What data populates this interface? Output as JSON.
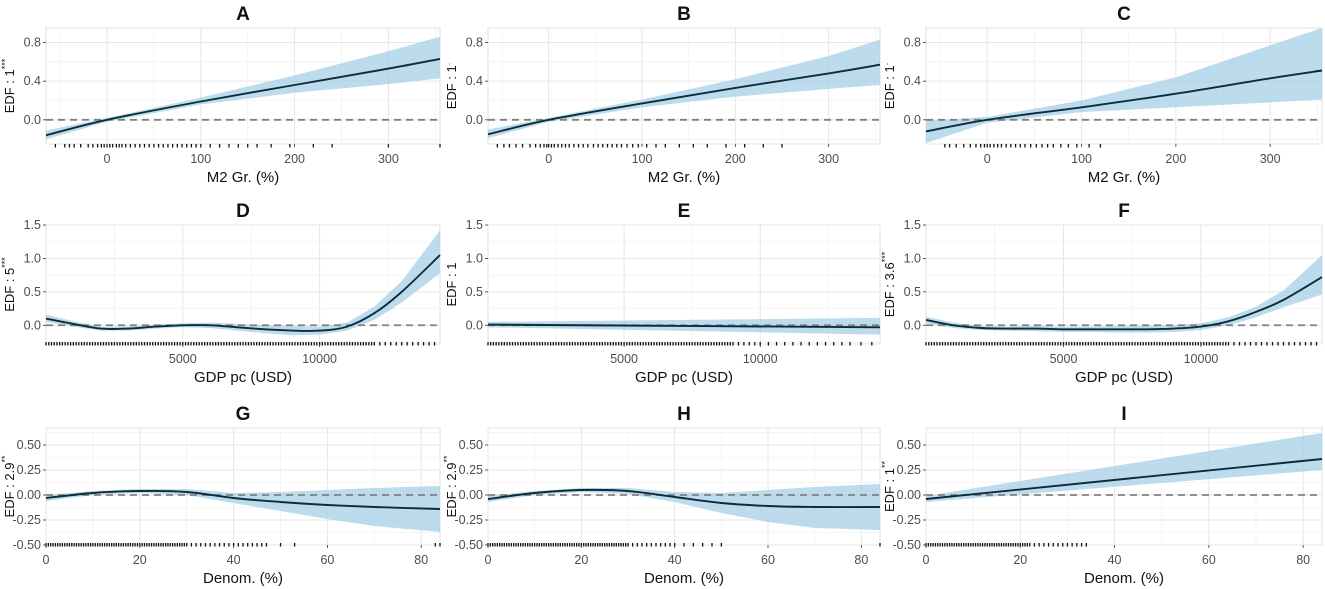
{
  "chart_data": [
    {
      "panel": "A",
      "type": "line",
      "title": "A",
      "xlabel": "M2 Gr. (%)",
      "ylabel": "EDF : 1",
      "stars": "***",
      "xlim": [
        -65,
        355
      ],
      "ylim": [
        -0.25,
        0.95
      ],
      "xticks": [
        0,
        100,
        200,
        300
      ],
      "yticks": [
        0.0,
        0.4,
        0.8
      ],
      "ytick_labels": [
        "0.0",
        "0.4",
        "0.8"
      ],
      "x": [
        -65,
        0,
        100,
        200,
        300,
        355
      ],
      "y": [
        -0.16,
        0.0,
        0.19,
        0.36,
        0.53,
        0.63
      ],
      "lower": [
        -0.2,
        -0.02,
        0.16,
        0.28,
        0.37,
        0.43
      ],
      "upper": [
        -0.11,
        0.02,
        0.23,
        0.46,
        0.71,
        0.86
      ],
      "rug": [
        -55,
        -45,
        -40,
        -35,
        -28,
        -20,
        -15,
        -10,
        -6,
        -3,
        0,
        3,
        6,
        10,
        13,
        16,
        20,
        25,
        30,
        35,
        40,
        45,
        50,
        55,
        60,
        65,
        70,
        75,
        80,
        85,
        90,
        95,
        100,
        110,
        120,
        130,
        140,
        150,
        160,
        175,
        195,
        220,
        240,
        300,
        355
      ]
    },
    {
      "panel": "B",
      "type": "line",
      "title": "B",
      "xlabel": "M2 Gr. (%)",
      "ylabel": "EDF : 1",
      "stars": ".",
      "xlim": [
        -65,
        355
      ],
      "ylim": [
        -0.25,
        0.95
      ],
      "xticks": [
        0,
        100,
        200,
        300
      ],
      "yticks": [
        0.0,
        0.4,
        0.8
      ],
      "ytick_labels": [
        "0.0",
        "0.4",
        "0.8"
      ],
      "x": [
        -65,
        0,
        100,
        200,
        300,
        355
      ],
      "y": [
        -0.15,
        0.0,
        0.17,
        0.33,
        0.48,
        0.57
      ],
      "lower": [
        -0.19,
        -0.02,
        0.13,
        0.24,
        0.32,
        0.36
      ],
      "upper": [
        -0.1,
        0.02,
        0.21,
        0.42,
        0.66,
        0.83
      ],
      "rug": [
        -55,
        -48,
        -42,
        -35,
        -28,
        -20,
        -14,
        -9,
        -5,
        -2,
        0,
        3,
        6,
        10,
        14,
        18,
        22,
        27,
        32,
        37,
        42,
        48,
        53,
        58,
        63,
        68,
        73,
        78,
        84,
        90,
        96,
        105,
        115,
        125,
        140,
        155,
        170,
        190,
        210,
        230,
        250
      ]
    },
    {
      "panel": "C",
      "type": "line",
      "title": "C",
      "xlabel": "M2 Gr. (%)",
      "ylabel": "EDF : 1",
      "stars": ".",
      "xlim": [
        -65,
        355
      ],
      "ylim": [
        -0.25,
        0.95
      ],
      "xticks": [
        0,
        100,
        200,
        300
      ],
      "yticks": [
        0.0,
        0.4,
        0.8
      ],
      "ytick_labels": [
        "0.0",
        "0.4",
        "0.8"
      ],
      "x": [
        -65,
        0,
        100,
        200,
        300,
        355
      ],
      "y": [
        -0.12,
        0.0,
        0.13,
        0.27,
        0.43,
        0.51
      ],
      "lower": [
        -0.24,
        -0.03,
        0.08,
        0.13,
        0.18,
        0.21
      ],
      "upper": [
        -0.01,
        0.03,
        0.2,
        0.44,
        0.77,
        0.95
      ],
      "rug": [
        -45,
        -40,
        -33,
        -25,
        -18,
        -12,
        -7,
        -3,
        0,
        3,
        7,
        11,
        15,
        20,
        25,
        30,
        35,
        40,
        46,
        52,
        58,
        64,
        70,
        78,
        86,
        95,
        108,
        120
      ]
    },
    {
      "panel": "D",
      "type": "line",
      "title": "D",
      "xlabel": "GDP pc (USD)",
      "ylabel": "EDF : 5",
      "stars": "***",
      "xlim": [
        0,
        14400
      ],
      "ylim": [
        -0.28,
        1.5
      ],
      "xticks": [
        5000,
        10000
      ],
      "yticks": [
        0.0,
        0.5,
        1.0,
        1.5
      ],
      "ytick_labels": [
        "0.0",
        "0.5",
        "1.0",
        "1.5"
      ],
      "x": [
        0,
        1000,
        2000,
        3000,
        4000,
        5000,
        6000,
        7000,
        8000,
        9000,
        10000,
        11000,
        12000,
        13000,
        14400
      ],
      "y": [
        0.1,
        0.02,
        -0.05,
        -0.05,
        -0.02,
        0.0,
        0.0,
        -0.03,
        -0.06,
        -0.08,
        -0.08,
        -0.02,
        0.18,
        0.5,
        1.05
      ],
      "lower": [
        0.05,
        -0.02,
        -0.08,
        -0.08,
        -0.05,
        -0.03,
        -0.04,
        -0.08,
        -0.12,
        -0.15,
        -0.14,
        -0.08,
        0.08,
        0.34,
        0.78
      ],
      "upper": [
        0.16,
        0.06,
        -0.02,
        -0.02,
        0.01,
        0.03,
        0.04,
        0.02,
        0.0,
        -0.01,
        -0.02,
        0.04,
        0.28,
        0.66,
        1.42
      ],
      "rug": [
        0,
        100,
        200,
        300,
        400,
        500,
        600,
        700,
        800,
        900,
        1000,
        1100,
        1200,
        1300,
        1400,
        1500,
        1600,
        1700,
        1800,
        1900,
        2000,
        2100,
        2200,
        2300,
        2400,
        2500,
        2600,
        2700,
        2800,
        2900,
        3000,
        3100,
        3200,
        3300,
        3400,
        3500,
        3600,
        3700,
        3800,
        3900,
        4000,
        4100,
        4200,
        4300,
        4400,
        4500,
        4600,
        4700,
        4800,
        4900,
        5000,
        5100,
        5200,
        5300,
        5400,
        5500,
        5600,
        5700,
        5800,
        5900,
        6000,
        6100,
        6200,
        6300,
        6400,
        6500,
        6600,
        6700,
        6800,
        6900,
        7000,
        7100,
        7200,
        7300,
        7400,
        7500,
        7600,
        7700,
        7800,
        7900,
        8000,
        8100,
        8200,
        8300,
        8400,
        8500,
        8600,
        8700,
        8800,
        8900,
        9000,
        9100,
        9200,
        9300,
        9400,
        9500,
        9600,
        9700,
        9800,
        9900,
        10000,
        10100,
        10200,
        10300,
        10400,
        10500,
        10600,
        10700,
        10800,
        10900,
        11000,
        11100,
        11200,
        11300,
        11400,
        11500,
        11600,
        11700,
        11800,
        11900,
        12000,
        12200,
        12400,
        12600,
        12800,
        13000,
        13200,
        13400,
        13600,
        13800,
        14000,
        14200
      ]
    },
    {
      "panel": "E",
      "type": "line",
      "title": "E",
      "xlabel": "GDP pc (USD)",
      "ylabel": "EDF : 1",
      "stars": "",
      "xlim": [
        0,
        14400
      ],
      "ylim": [
        -0.28,
        1.5
      ],
      "xticks": [
        5000,
        10000
      ],
      "yticks": [
        0.0,
        0.5,
        1.0,
        1.5
      ],
      "ytick_labels": [
        "0.0",
        "0.5",
        "1.0",
        "1.5"
      ],
      "x": [
        0,
        14400
      ],
      "y": [
        0.01,
        -0.03
      ],
      "lower": [
        -0.03,
        -0.14
      ],
      "upper": [
        0.05,
        0.11
      ],
      "rug": [
        0,
        100,
        200,
        300,
        400,
        500,
        600,
        700,
        800,
        900,
        1000,
        1100,
        1200,
        1300,
        1400,
        1500,
        1600,
        1700,
        1800,
        1900,
        2000,
        2100,
        2200,
        2300,
        2400,
        2500,
        2600,
        2700,
        2800,
        2900,
        3000,
        3100,
        3200,
        3300,
        3400,
        3500,
        3600,
        3700,
        3800,
        3900,
        4000,
        4100,
        4200,
        4300,
        4400,
        4500,
        4600,
        4700,
        4800,
        4900,
        5000,
        5100,
        5200,
        5300,
        5400,
        5500,
        5600,
        5700,
        5800,
        5900,
        6000,
        6100,
        6200,
        6300,
        6400,
        6500,
        6600,
        6700,
        6800,
        6900,
        7000,
        7100,
        7200,
        7300,
        7400,
        7500,
        7600,
        7700,
        7800,
        7900,
        8000,
        8100,
        8200,
        8300,
        8400,
        8500,
        8600,
        8700,
        8800,
        8900,
        9000,
        9200,
        9400,
        9600,
        9800,
        10000,
        10300,
        10600,
        10900,
        11200,
        11500,
        11800,
        12100,
        12400,
        12700,
        13000,
        13300,
        13700,
        14100
      ]
    },
    {
      "panel": "F",
      "type": "line",
      "title": "F",
      "xlabel": "GDP pc (USD)",
      "ylabel": "EDF : 3.6",
      "stars": "***",
      "xlim": [
        0,
        14400
      ],
      "ylim": [
        -0.28,
        1.5
      ],
      "xticks": [
        5000,
        10000
      ],
      "yticks": [
        0.0,
        0.5,
        1.0,
        1.5
      ],
      "ytick_labels": [
        "0.0",
        "0.5",
        "1.0",
        "1.5"
      ],
      "x": [
        0,
        1000,
        2000,
        3000,
        4000,
        5000,
        6000,
        7000,
        8000,
        9000,
        10000,
        11000,
        12000,
        13000,
        14400
      ],
      "y": [
        0.08,
        0.0,
        -0.04,
        -0.05,
        -0.05,
        -0.06,
        -0.06,
        -0.06,
        -0.06,
        -0.05,
        -0.02,
        0.06,
        0.2,
        0.38,
        0.72
      ],
      "lower": [
        0.03,
        -0.04,
        -0.07,
        -0.08,
        -0.09,
        -0.1,
        -0.1,
        -0.11,
        -0.11,
        -0.1,
        -0.07,
        0.0,
        0.12,
        0.27,
        0.46
      ],
      "upper": [
        0.13,
        0.04,
        -0.01,
        -0.02,
        -0.01,
        -0.02,
        -0.02,
        -0.01,
        -0.01,
        0.0,
        0.03,
        0.12,
        0.28,
        0.52,
        1.05
      ],
      "rug": [
        0,
        100,
        200,
        300,
        400,
        500,
        600,
        700,
        800,
        900,
        1000,
        1100,
        1200,
        1300,
        1400,
        1500,
        1600,
        1700,
        1800,
        1900,
        2000,
        2100,
        2200,
        2300,
        2400,
        2500,
        2600,
        2700,
        2800,
        2900,
        3000,
        3100,
        3200,
        3300,
        3400,
        3500,
        3600,
        3700,
        3800,
        3900,
        4000,
        4100,
        4200,
        4300,
        4400,
        4500,
        4600,
        4700,
        4800,
        4900,
        5000,
        5100,
        5200,
        5300,
        5400,
        5500,
        5600,
        5700,
        5800,
        5900,
        6000,
        6100,
        6200,
        6300,
        6400,
        6500,
        6600,
        6700,
        6800,
        6900,
        7000,
        7100,
        7200,
        7300,
        7400,
        7500,
        7600,
        7700,
        7800,
        7900,
        8000,
        8100,
        8200,
        8300,
        8400,
        8500,
        8600,
        8700,
        8800,
        8900,
        9000,
        9100,
        9200,
        9300,
        9400,
        9500,
        9600,
        9700,
        9800,
        9900,
        10000,
        10100,
        10200,
        10300,
        10400,
        10500,
        10600,
        10700,
        10800,
        10900,
        11000,
        11200,
        11400,
        11600,
        11800,
        12000,
        12200,
        12400,
        12600,
        12800,
        13000,
        13200,
        13400,
        13600,
        13800,
        14000,
        14200
      ]
    },
    {
      "panel": "G",
      "type": "line",
      "title": "G",
      "xlabel": "Denom. (%)",
      "ylabel": "EDF : 2.9",
      "stars": "**",
      "xlim": [
        0,
        84
      ],
      "ylim": [
        -0.5,
        0.67
      ],
      "xticks": [
        0,
        20,
        40,
        60,
        80
      ],
      "yticks": [
        -0.5,
        -0.25,
        0.0,
        0.25,
        0.5
      ],
      "ytick_labels": [
        "-0.50",
        "-0.25",
        "0.00",
        "0.25",
        "0.50"
      ],
      "x": [
        0,
        10,
        20,
        30,
        40,
        50,
        60,
        70,
        84
      ],
      "y": [
        -0.03,
        0.02,
        0.04,
        0.03,
        -0.03,
        -0.07,
        -0.1,
        -0.12,
        -0.14
      ],
      "lower": [
        -0.06,
        0.0,
        0.02,
        0.0,
        -0.08,
        -0.16,
        -0.24,
        -0.31,
        -0.37
      ],
      "upper": [
        0.0,
        0.04,
        0.06,
        0.06,
        0.02,
        0.03,
        0.05,
        0.07,
        0.09
      ],
      "rug": [
        0,
        0.5,
        1,
        1.5,
        2,
        2.5,
        3,
        3.5,
        4,
        4.5,
        5,
        5.5,
        6,
        6.5,
        7,
        7.5,
        8,
        8.5,
        9,
        9.5,
        10,
        10.5,
        11,
        11.5,
        12,
        12.5,
        13,
        13.5,
        14,
        14.5,
        15,
        15.5,
        16,
        16.5,
        17,
        17.5,
        18,
        18.5,
        19,
        19.5,
        20,
        20.5,
        21,
        21.5,
        22,
        22.5,
        23,
        23.5,
        24,
        24.5,
        25,
        25.5,
        26,
        26.5,
        27,
        27.5,
        28,
        28.5,
        29,
        29.5,
        30,
        31,
        32,
        33,
        34,
        35,
        36,
        37,
        38,
        39,
        40,
        41,
        42,
        43,
        44,
        45,
        46,
        47,
        50,
        53,
        83,
        84
      ]
    },
    {
      "panel": "H",
      "type": "line",
      "title": "H",
      "xlabel": "Denom. (%)",
      "ylabel": "EDF : 2.9",
      "stars": "**",
      "xlim": [
        0,
        84
      ],
      "ylim": [
        -0.5,
        0.67
      ],
      "xticks": [
        0,
        20,
        40,
        60,
        80
      ],
      "yticks": [
        -0.5,
        -0.25,
        0.0,
        0.25,
        0.5
      ],
      "ytick_labels": [
        "-0.50",
        "-0.25",
        "0.00",
        "0.25",
        "0.50"
      ],
      "x": [
        0,
        10,
        20,
        30,
        40,
        50,
        60,
        70,
        84
      ],
      "y": [
        -0.04,
        0.02,
        0.05,
        0.04,
        -0.02,
        -0.08,
        -0.11,
        -0.12,
        -0.12
      ],
      "lower": [
        -0.07,
        0.0,
        0.03,
        0.01,
        -0.07,
        -0.18,
        -0.27,
        -0.33,
        -0.35
      ],
      "upper": [
        -0.01,
        0.04,
        0.07,
        0.07,
        0.03,
        0.02,
        0.05,
        0.08,
        0.11
      ],
      "rug": [
        0,
        0.5,
        1,
        1.5,
        2,
        2.5,
        3,
        3.5,
        4,
        4.5,
        5,
        5.5,
        6,
        6.5,
        7,
        7.5,
        8,
        8.5,
        9,
        9.5,
        10,
        10.5,
        11,
        11.5,
        12,
        12.5,
        13,
        13.5,
        14,
        14.5,
        15,
        15.5,
        16,
        16.5,
        17,
        17.5,
        18,
        18.5,
        19,
        19.5,
        20,
        20.5,
        21,
        21.5,
        22,
        22.5,
        23,
        23.5,
        24,
        24.5,
        25,
        25.5,
        26,
        26.5,
        27,
        27.5,
        28,
        28.5,
        29,
        29.5,
        30,
        31,
        32,
        33,
        34,
        35,
        36,
        37,
        38,
        39,
        40,
        42,
        44,
        46,
        48,
        50,
        84
      ]
    },
    {
      "panel": "I",
      "type": "line",
      "title": "I",
      "xlabel": "Denom. (%)",
      "ylabel": "EDF : 1",
      "stars": "**",
      "xlim": [
        0,
        84
      ],
      "ylim": [
        -0.5,
        0.67
      ],
      "xticks": [
        0,
        20,
        40,
        60,
        80
      ],
      "yticks": [
        -0.5,
        -0.25,
        0.0,
        0.25,
        0.5
      ],
      "ytick_labels": [
        "-0.50",
        "-0.25",
        "0.00",
        "0.25",
        "0.50"
      ],
      "x": [
        0,
        84
      ],
      "y": [
        -0.04,
        0.36
      ],
      "lower": [
        -0.07,
        0.25
      ],
      "upper": [
        -0.01,
        0.62
      ],
      "rug": [
        0,
        0.5,
        1,
        1.5,
        2,
        2.5,
        3,
        3.5,
        4,
        4.5,
        5,
        5.5,
        6,
        6.5,
        7,
        7.5,
        8,
        8.5,
        9,
        9.5,
        10,
        10.5,
        11,
        11.5,
        12,
        12.5,
        13,
        13.5,
        14,
        14.5,
        15,
        15.5,
        16,
        16.5,
        17,
        17.5,
        18,
        18.5,
        19,
        19.5,
        20,
        20.5,
        21,
        21.5,
        22,
        23,
        24,
        25,
        26,
        27,
        28,
        29,
        30,
        31,
        32,
        33,
        34
      ]
    }
  ],
  "colors": {
    "band": "#a6cfe5",
    "line": "#0d2c3a",
    "grid": "#e6e6e6",
    "dash": "#808080",
    "rug": "#111111",
    "panel_border": "#cccccc"
  }
}
